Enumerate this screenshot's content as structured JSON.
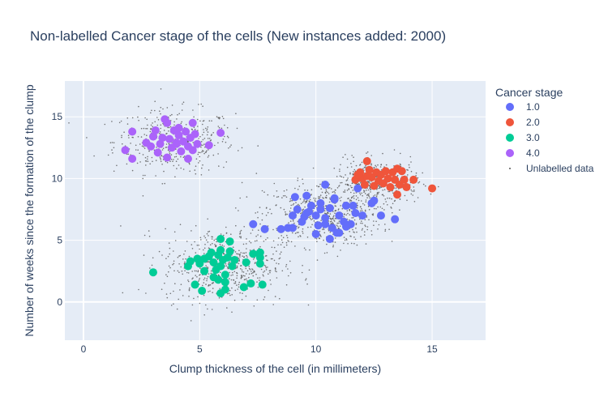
{
  "chart_data": {
    "type": "scatter",
    "title": "Non-labelled Cancer stage of the cells (New instances added: 2000)",
    "xlabel": "Clump thickness of the cell (in millimeters)",
    "ylabel": "Number of weeks since the formation of the clump",
    "xlim": [
      -0.8,
      17.3
    ],
    "ylim": [
      -3.1,
      17.9
    ],
    "x_ticks": [
      0,
      5,
      10,
      15
    ],
    "y_ticks": [
      0,
      5,
      10,
      15
    ],
    "grid": true,
    "legend_title": "Cancer stage",
    "legend_position": "right",
    "series": [
      {
        "name": "1.0",
        "color": "#636efa",
        "points": [
          [
            7.3,
            6.3
          ],
          [
            7.8,
            5.9
          ],
          [
            8.5,
            5.9
          ],
          [
            8.8,
            6.0
          ],
          [
            9.0,
            7.0
          ],
          [
            9.2,
            7.5
          ],
          [
            9.4,
            6.5
          ],
          [
            9.6,
            7.2
          ],
          [
            9.8,
            7.8
          ],
          [
            10.0,
            7.0
          ],
          [
            10.2,
            7.5
          ],
          [
            10.4,
            6.8
          ],
          [
            10.6,
            7.6
          ],
          [
            10.8,
            8.3
          ],
          [
            11.0,
            7.0
          ],
          [
            11.2,
            6.5
          ],
          [
            10.0,
            5.5
          ],
          [
            10.4,
            6.3
          ],
          [
            10.7,
            6.0
          ],
          [
            11.0,
            5.6
          ],
          [
            11.5,
            6.3
          ],
          [
            11.7,
            7.2
          ],
          [
            12.0,
            7.0
          ],
          [
            12.4,
            8.0
          ],
          [
            12.8,
            7.0
          ],
          [
            13.4,
            6.7
          ],
          [
            12.5,
            8.2
          ],
          [
            11.6,
            7.8
          ],
          [
            9.1,
            8.5
          ],
          [
            9.6,
            8.6
          ],
          [
            10.2,
            8.0
          ],
          [
            10.4,
            9.5
          ],
          [
            10.8,
            8.4
          ],
          [
            11.3,
            7.8
          ],
          [
            11.8,
            9.2
          ],
          [
            9.0,
            6.0
          ],
          [
            9.5,
            6.9
          ],
          [
            10.1,
            6.2
          ],
          [
            10.6,
            5.1
          ],
          [
            10.9,
            5.6
          ],
          [
            11.3,
            6.1
          ],
          [
            9.7,
            7.3
          ]
        ]
      },
      {
        "name": "2.0",
        "color": "#ef553b",
        "points": [
          [
            11.7,
            9.9
          ],
          [
            11.9,
            10.5
          ],
          [
            12.0,
            10.0
          ],
          [
            12.1,
            9.5
          ],
          [
            12.2,
            11.4
          ],
          [
            12.3,
            10.7
          ],
          [
            12.4,
            10.1
          ],
          [
            12.5,
            9.4
          ],
          [
            12.6,
            10.5
          ],
          [
            12.7,
            9.8
          ],
          [
            12.8,
            10.3
          ],
          [
            12.9,
            9.6
          ],
          [
            13.0,
            10.6
          ],
          [
            13.1,
            10.0
          ],
          [
            13.2,
            9.3
          ],
          [
            13.3,
            10.5
          ],
          [
            13.4,
            9.9
          ],
          [
            13.5,
            10.8
          ],
          [
            13.6,
            9.5
          ],
          [
            13.7,
            10.6
          ],
          [
            13.8,
            9.9
          ],
          [
            13.5,
            8.7
          ],
          [
            13.9,
            9.3
          ],
          [
            14.2,
            9.9
          ],
          [
            15.0,
            9.2
          ],
          [
            12.2,
            10.2
          ],
          [
            11.8,
            10.3
          ]
        ]
      },
      {
        "name": "3.0",
        "color": "#00cc96",
        "points": [
          [
            3.0,
            2.4
          ],
          [
            4.5,
            2.9
          ],
          [
            4.6,
            3.3
          ],
          [
            4.9,
            3.5
          ],
          [
            5.0,
            3.1
          ],
          [
            5.2,
            3.5
          ],
          [
            5.2,
            2.5
          ],
          [
            5.4,
            3.7
          ],
          [
            5.5,
            4.0
          ],
          [
            5.6,
            3.2
          ],
          [
            5.7,
            2.6
          ],
          [
            5.8,
            3.8
          ],
          [
            5.9,
            4.2
          ],
          [
            5.9,
            2.9
          ],
          [
            6.0,
            3.4
          ],
          [
            6.1,
            2.2
          ],
          [
            6.2,
            3.6
          ],
          [
            6.3,
            4.1
          ],
          [
            6.4,
            2.9
          ],
          [
            6.5,
            3.4
          ],
          [
            5.9,
            5.1
          ],
          [
            6.3,
            4.9
          ],
          [
            5.6,
            2.0
          ],
          [
            5.8,
            1.8
          ],
          [
            6.1,
            1.6
          ],
          [
            5.9,
            0.7
          ],
          [
            6.1,
            1.0
          ],
          [
            4.8,
            1.4
          ],
          [
            5.1,
            0.9
          ],
          [
            6.9,
            1.2
          ],
          [
            7.2,
            1.5
          ],
          [
            7.0,
            3.2
          ],
          [
            7.3,
            3.9
          ],
          [
            7.6,
            3.1
          ],
          [
            7.6,
            3.6
          ],
          [
            7.7,
            1.4
          ],
          [
            7.6,
            4.0
          ]
        ]
      },
      {
        "name": "4.0",
        "color": "#ab63fa",
        "points": [
          [
            1.8,
            12.3
          ],
          [
            2.1,
            11.6
          ],
          [
            2.1,
            13.8
          ],
          [
            2.7,
            12.9
          ],
          [
            2.9,
            12.6
          ],
          [
            3.0,
            13.4
          ],
          [
            3.1,
            13.9
          ],
          [
            3.2,
            12.1
          ],
          [
            3.3,
            12.8
          ],
          [
            3.4,
            13.3
          ],
          [
            3.5,
            14.8
          ],
          [
            3.6,
            14.5
          ],
          [
            3.7,
            13.2
          ],
          [
            3.8,
            12.5
          ],
          [
            3.9,
            13.9
          ],
          [
            4.0,
            12.9
          ],
          [
            4.1,
            13.5
          ],
          [
            4.2,
            12.2
          ],
          [
            4.3,
            13.0
          ],
          [
            4.4,
            13.8
          ],
          [
            4.5,
            12.6
          ],
          [
            4.6,
            13.3
          ],
          [
            4.7,
            12.3
          ],
          [
            4.8,
            13.6
          ],
          [
            4.9,
            12.8
          ],
          [
            4.1,
            14.1
          ],
          [
            4.7,
            14.5
          ],
          [
            5.4,
            12.7
          ],
          [
            5.9,
            13.7
          ],
          [
            4.5,
            11.6
          ],
          [
            3.6,
            11.7
          ],
          [
            4.0,
            12.8
          ]
        ]
      }
    ],
    "unlabelled": {
      "name": "Unlabelled data",
      "color": "#555555",
      "count": 2000,
      "clusters": [
        {
          "cx": 3.9,
          "cy": 13.0,
          "sx": 1.3,
          "sy": 1.3,
          "n": 440
        },
        {
          "cx": 10.3,
          "cy": 7.1,
          "sx": 1.25,
          "sy": 1.3,
          "n": 560
        },
        {
          "cx": 12.6,
          "cy": 9.7,
          "sx": 0.9,
          "sy": 0.9,
          "n": 420
        },
        {
          "cx": 6.0,
          "cy": 3.0,
          "sx": 1.3,
          "sy": 1.5,
          "n": 580
        }
      ]
    }
  }
}
